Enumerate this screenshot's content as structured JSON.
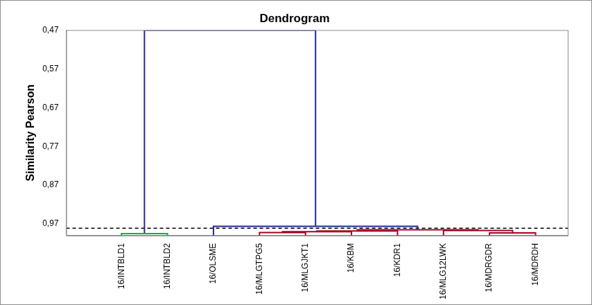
{
  "chart_data": {
    "type": "dendrogram",
    "title": "Dendrogram",
    "y_label": "Similarity Pearson",
    "categories": [
      "16/INTBLD1",
      "16/INTBLD2",
      "16/OLSME",
      "16/MLGTPG5",
      "16/MLGJKT1",
      "16/KBM",
      "16/KDR1",
      "16/MLG12LWK",
      "16/MDRGDR",
      "16/MDRDH"
    ],
    "merges": [
      [
        0,
        1,
        0.995
      ],
      [
        3,
        4,
        0.992
      ],
      [
        11,
        5,
        0.99
      ],
      [
        12,
        6,
        0.988
      ],
      [
        8,
        9,
        0.993
      ],
      [
        7,
        14,
        0.987
      ],
      [
        13,
        15,
        0.985
      ],
      [
        2,
        16,
        0.976
      ],
      [
        10,
        17,
        0.47
      ]
    ],
    "colors": [
      "#00b050",
      "#a50021",
      "#a50021",
      "#a50021",
      "#a50021",
      "#a50021",
      "#a50021",
      "#1f2a8c",
      "#1f2a8c"
    ],
    "cut_line": 0.981,
    "ylim": [
      1,
      0.47
    ],
    "yticks": [
      {
        "value": 0.47,
        "label": "0,47"
      },
      {
        "value": 0.57,
        "label": "0,57"
      },
      {
        "value": 0.67,
        "label": "0,67"
      },
      {
        "value": 0.77,
        "label": "0,77"
      },
      {
        "value": 0.87,
        "label": "0,87"
      },
      {
        "value": 0.97,
        "label": "0,97"
      }
    ],
    "grid": false
  }
}
